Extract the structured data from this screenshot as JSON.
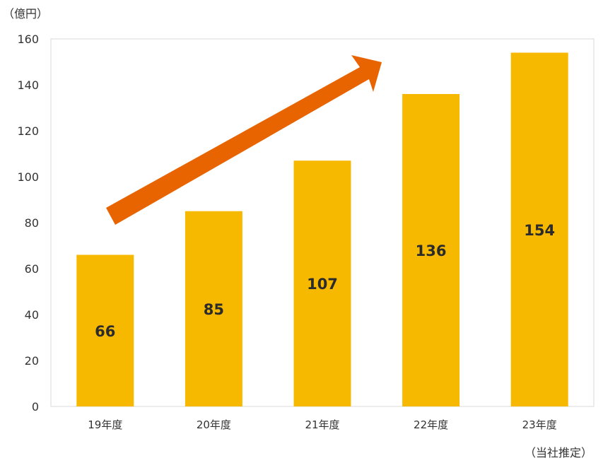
{
  "chart_data": {
    "type": "bar",
    "categories": [
      "19年度",
      "20年度",
      "21年度",
      "22年度",
      "23年度"
    ],
    "values": [
      66,
      85,
      107,
      136,
      154
    ],
    "data_labels": [
      "66",
      "85",
      "107",
      "136",
      "154"
    ],
    "ylim": [
      0,
      160
    ],
    "yticks": [
      0,
      20,
      40,
      60,
      80,
      100,
      120,
      140,
      160
    ],
    "y_unit_label": "（億円）",
    "note": "（当社推定）",
    "grid": false,
    "legend": "none",
    "colors": {
      "bar": "#F7B900",
      "arrow": "#E86400",
      "axis": "#D9D9D9",
      "text": "#333333"
    }
  }
}
